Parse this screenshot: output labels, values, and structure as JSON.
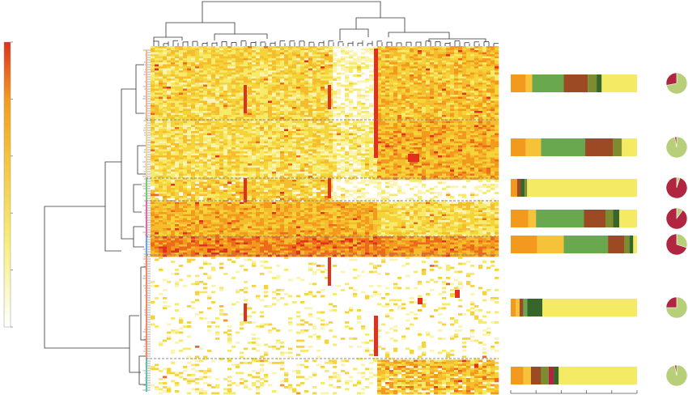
{
  "figure": {
    "colors": {
      "scale_high": "#e0301e",
      "scale_mid_high": "#f39a1e",
      "scale_mid": "#f5d43a",
      "scale_low": "#f7ee7a",
      "scale_zero": "#ffffff",
      "dendrogram": "#333333",
      "separator": "#8a8a8a"
    },
    "color_scale_ticks": 6,
    "clusters": [
      {
        "id": "c1",
        "bar_segments": [
          {
            "color": "#f39a1e",
            "fraction": 0.12
          },
          {
            "color": "#f5c23a",
            "fraction": 0.05
          },
          {
            "color": "#6aa84f",
            "fraction": 0.25
          },
          {
            "color": "#9b4a23",
            "fraction": 0.19
          },
          {
            "color": "#7c8c2e",
            "fraction": 0.07
          },
          {
            "color": "#36662a",
            "fraction": 0.04
          },
          {
            "color": "#f4ea63",
            "fraction": 0.28
          }
        ],
        "pie": [
          {
            "color": "#b8cf7a",
            "fraction": 0.72
          },
          {
            "color": "#b0253f",
            "fraction": 0.28
          }
        ]
      },
      {
        "id": "c2",
        "bar_segments": [
          {
            "color": "#f39a1e",
            "fraction": 0.12
          },
          {
            "color": "#f5c23a",
            "fraction": 0.12
          },
          {
            "color": "#6aa84f",
            "fraction": 0.35
          },
          {
            "color": "#9b4a23",
            "fraction": 0.22
          },
          {
            "color": "#7c8c2e",
            "fraction": 0.07
          },
          {
            "color": "#f4ea63",
            "fraction": 0.12
          }
        ],
        "pie": [
          {
            "color": "#b8cf7a",
            "fraction": 0.97
          },
          {
            "color": "#b0253f",
            "fraction": 0.03
          }
        ]
      },
      {
        "id": "c3",
        "bar_segments": [
          {
            "color": "#f39a1e",
            "fraction": 0.05
          },
          {
            "color": "#9b4a23",
            "fraction": 0.03
          },
          {
            "color": "#36662a",
            "fraction": 0.03
          },
          {
            "color": "#7c8c2e",
            "fraction": 0.02
          },
          {
            "color": "#f4ea63",
            "fraction": 0.87
          }
        ],
        "pie": [
          {
            "color": "#b8cf7a",
            "fraction": 0.05
          },
          {
            "color": "#b0253f",
            "fraction": 0.95
          }
        ]
      },
      {
        "id": "c4",
        "bar_segments": [
          {
            "color": "#f39a1e",
            "fraction": 0.14
          },
          {
            "color": "#f5c23a",
            "fraction": 0.06
          },
          {
            "color": "#6aa84f",
            "fraction": 0.38
          },
          {
            "color": "#9b4a23",
            "fraction": 0.17
          },
          {
            "color": "#7c8c2e",
            "fraction": 0.06
          },
          {
            "color": "#36662a",
            "fraction": 0.05
          },
          {
            "color": "#f4ea63",
            "fraction": 0.14
          }
        ],
        "pie": [
          {
            "color": "#b8cf7a",
            "fraction": 0.1
          },
          {
            "color": "#b0253f",
            "fraction": 0.9
          }
        ]
      },
      {
        "id": "c5",
        "bar_segments": [
          {
            "color": "#f39a1e",
            "fraction": 0.21
          },
          {
            "color": "#f5c23a",
            "fraction": 0.21
          },
          {
            "color": "#6aa84f",
            "fraction": 0.35
          },
          {
            "color": "#9b4a23",
            "fraction": 0.13
          },
          {
            "color": "#7c8c2e",
            "fraction": 0.04
          },
          {
            "color": "#36662a",
            "fraction": 0.03
          },
          {
            "color": "#f4ea63",
            "fraction": 0.03
          }
        ],
        "pie": [
          {
            "color": "#b8cf7a",
            "fraction": 0.3
          },
          {
            "color": "#b0253f",
            "fraction": 0.7
          }
        ]
      },
      {
        "id": "c6",
        "bar_segments": [
          {
            "color": "#f39a1e",
            "fraction": 0.04
          },
          {
            "color": "#f5c23a",
            "fraction": 0.03
          },
          {
            "color": "#9b4a23",
            "fraction": 0.03
          },
          {
            "color": "#6aa84f",
            "fraction": 0.03
          },
          {
            "color": "#36662a",
            "fraction": 0.12
          },
          {
            "color": "#f4ea63",
            "fraction": 0.75
          }
        ],
        "pie": [
          {
            "color": "#b8cf7a",
            "fraction": 0.75
          },
          {
            "color": "#b0253f",
            "fraction": 0.25
          }
        ]
      },
      {
        "id": "c7",
        "bar_segments": [
          {
            "color": "#f39a1e",
            "fraction": 0.1
          },
          {
            "color": "#f5c23a",
            "fraction": 0.06
          },
          {
            "color": "#9b4a23",
            "fraction": 0.08
          },
          {
            "color": "#7c8c2e",
            "fraction": 0.06
          },
          {
            "color": "#b0253f",
            "fraction": 0.04
          },
          {
            "color": "#36662a",
            "fraction": 0.04
          },
          {
            "color": "#f4ea63",
            "fraction": 0.62
          }
        ],
        "pie": [
          {
            "color": "#b8cf7a",
            "fraction": 0.97
          },
          {
            "color": "#b0253f",
            "fraction": 0.03
          }
        ]
      }
    ]
  }
}
